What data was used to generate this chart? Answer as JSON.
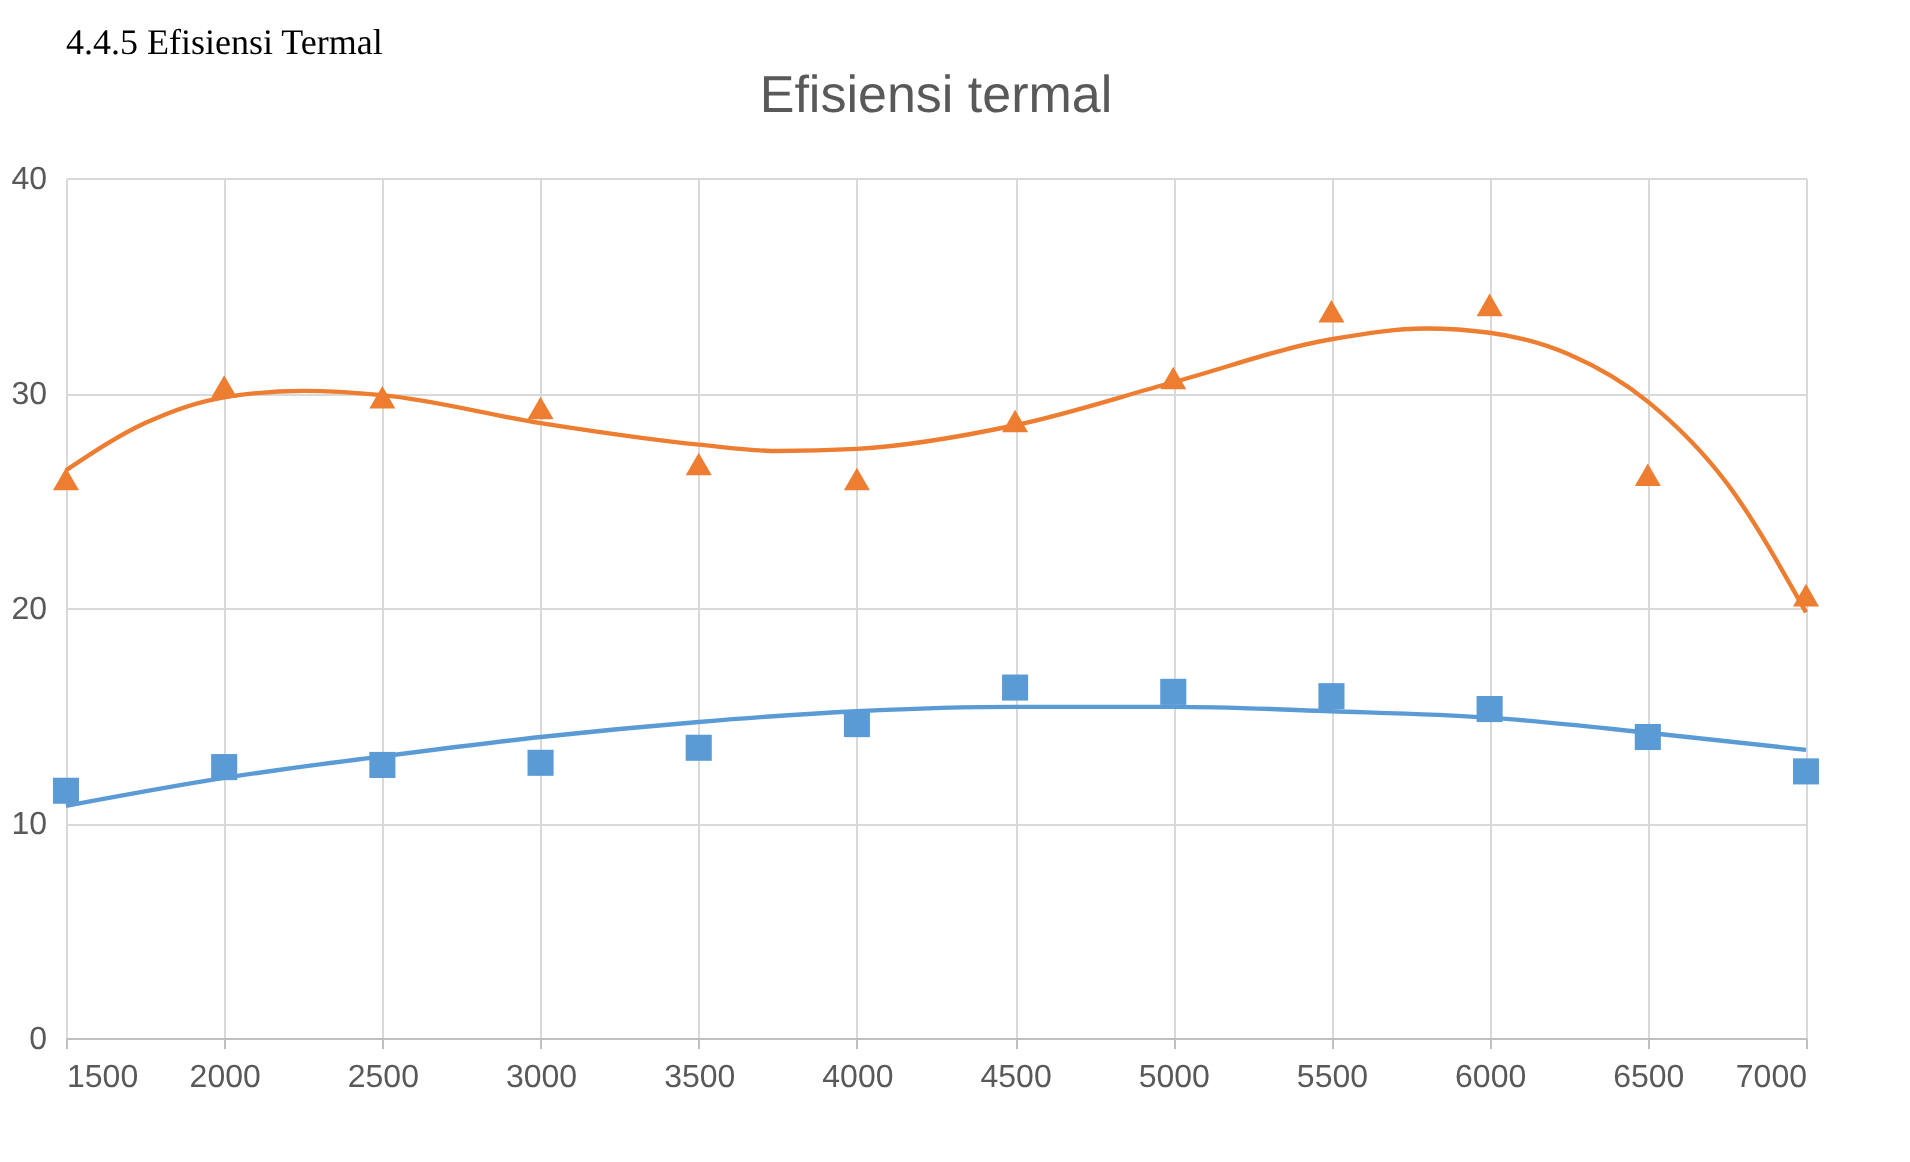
{
  "chart_data": {
    "type": "scatter",
    "title": "Efisiensi termal",
    "x": [
      1500,
      2000,
      2500,
      3000,
      3500,
      4000,
      4500,
      5000,
      5500,
      6000,
      6500,
      7000
    ],
    "series": [
      {
        "color": "#5b9bd5",
        "marker": "square",
        "values": [
          11.5,
          12.6,
          12.7,
          12.8,
          13.5,
          14.6,
          16.3,
          16.1,
          15.9,
          15.3,
          14.0,
          12.4
        ]
      },
      {
        "color": "#ed7d31",
        "marker": "triangle",
        "values": [
          26.0,
          30.3,
          29.8,
          29.3,
          26.7,
          26.0,
          28.7,
          30.7,
          33.8,
          34.1,
          26.2,
          20.6
        ]
      },
      {
        "type": "line",
        "color": "#5b9bd5",
        "x": [
          1500,
          2000,
          2500,
          3000,
          3500,
          4000,
          4500,
          5000,
          5500,
          6000,
          6500,
          7000
        ],
        "values": [
          10.8,
          12.1,
          13.1,
          14.0,
          14.7,
          15.2,
          15.4,
          15.4,
          15.2,
          14.9,
          14.2,
          13.4
        ]
      },
      {
        "type": "line",
        "color": "#ed7d31",
        "x": [
          1500,
          1750,
          2000,
          2250,
          2500,
          3000,
          3500,
          3750,
          4000,
          4500,
          5000,
          5500,
          5800,
          6000,
          6250,
          6500,
          6750,
          7000
        ],
        "values": [
          26.4,
          28.6,
          29.8,
          30.1,
          29.9,
          28.6,
          27.6,
          27.3,
          27.4,
          28.5,
          30.5,
          32.5,
          33.0,
          32.8,
          31.8,
          29.6,
          25.8,
          19.8
        ]
      }
    ],
    "xlim": [
      1500,
      7000
    ],
    "xticks": [
      1500,
      2000,
      2500,
      3000,
      3500,
      4000,
      4500,
      5000,
      5500,
      6000,
      6500,
      7000
    ],
    "ylim": [
      0,
      40
    ],
    "yticks": [
      0,
      10,
      20,
      30,
      40
    ],
    "grid": true,
    "annotations": [
      "4.4.5 Efisiensi Termal"
    ]
  }
}
